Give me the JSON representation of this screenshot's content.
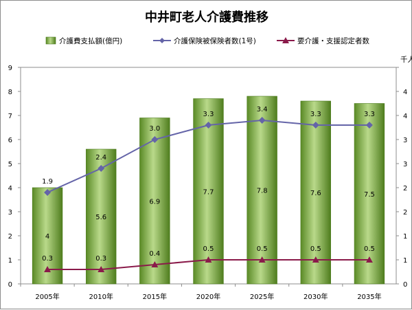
{
  "chart_data": {
    "type": "bar",
    "title": "中井町老人介護費推移",
    "categories": [
      "2005年",
      "2010年",
      "2015年",
      "2020年",
      "2025年",
      "2030年",
      "2035年"
    ],
    "series": [
      {
        "name": "介護費支払額(億円)",
        "kind": "bar",
        "axis": "left",
        "color": "#7aa53a",
        "values": [
          4,
          5.6,
          6.9,
          7.7,
          7.8,
          7.6,
          7.5
        ]
      },
      {
        "name": "介護保険被保険者数(1号)",
        "kind": "line",
        "axis": "right",
        "color": "#6464a8",
        "values": [
          1.9,
          2.4,
          3.0,
          3.3,
          3.4,
          3.3,
          3.3
        ]
      },
      {
        "name": "要介護・支援認定者数",
        "kind": "line",
        "axis": "right",
        "color": "#8a1a4a",
        "values": [
          0.3,
          0.3,
          0.4,
          0.5,
          0.5,
          0.5,
          0.5
        ]
      }
    ],
    "y_left": {
      "min": 0,
      "max": 9,
      "ticks": [
        "0",
        "1",
        "2",
        "3",
        "4",
        "5",
        "6",
        "7",
        "8",
        "9"
      ]
    },
    "y_right": {
      "unit": "千人",
      "min": 0,
      "max": 4.5,
      "ticks": [
        "0",
        "1",
        "1",
        "2",
        "2",
        "3",
        "3",
        "4",
        "4"
      ]
    },
    "grid": false,
    "legend_position": "top"
  }
}
